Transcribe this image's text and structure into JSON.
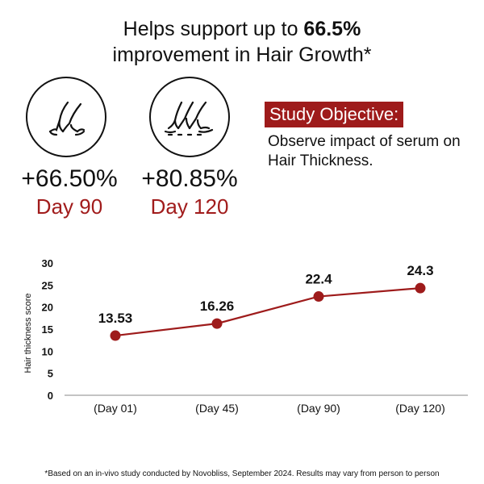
{
  "headline": {
    "prefix": "Helps support up to ",
    "highlight": "66.5%",
    "line2": "improvement in Hair Growth*"
  },
  "stats": [
    {
      "icon": "hair-follicle-icon",
      "percent": "+66.50%",
      "day": "Day 90"
    },
    {
      "icon": "hair-follicles-icon",
      "percent": "+80.85%",
      "day": "Day 120"
    }
  ],
  "objective": {
    "badge": "Study Objective:",
    "text": "Observe impact of serum on Hair Thickness."
  },
  "colors": {
    "accent": "#9e1b1b",
    "day_text": "#a11c1c",
    "line": "#9e1b1b",
    "axis": "#888888"
  },
  "chart_data": {
    "type": "line",
    "categories": [
      "(Day 01)",
      "(Day 45)",
      "(Day 90)",
      "(Day 120)"
    ],
    "series": [
      {
        "values": [
          13.53,
          16.26,
          22.4,
          24.3
        ],
        "labels": [
          "13.53",
          "16.26",
          "22.4",
          "24.3"
        ]
      }
    ],
    "ylabel": "Hair thickness score",
    "xlabel": "",
    "ylim": [
      0,
      30
    ],
    "yticks": [
      0,
      5,
      10,
      15,
      20,
      25,
      30
    ],
    "grid": false,
    "legend": "none"
  },
  "footnote": "*Based on an in-vivo study conducted by Novobliss, September 2024. Results may vary from person to person"
}
